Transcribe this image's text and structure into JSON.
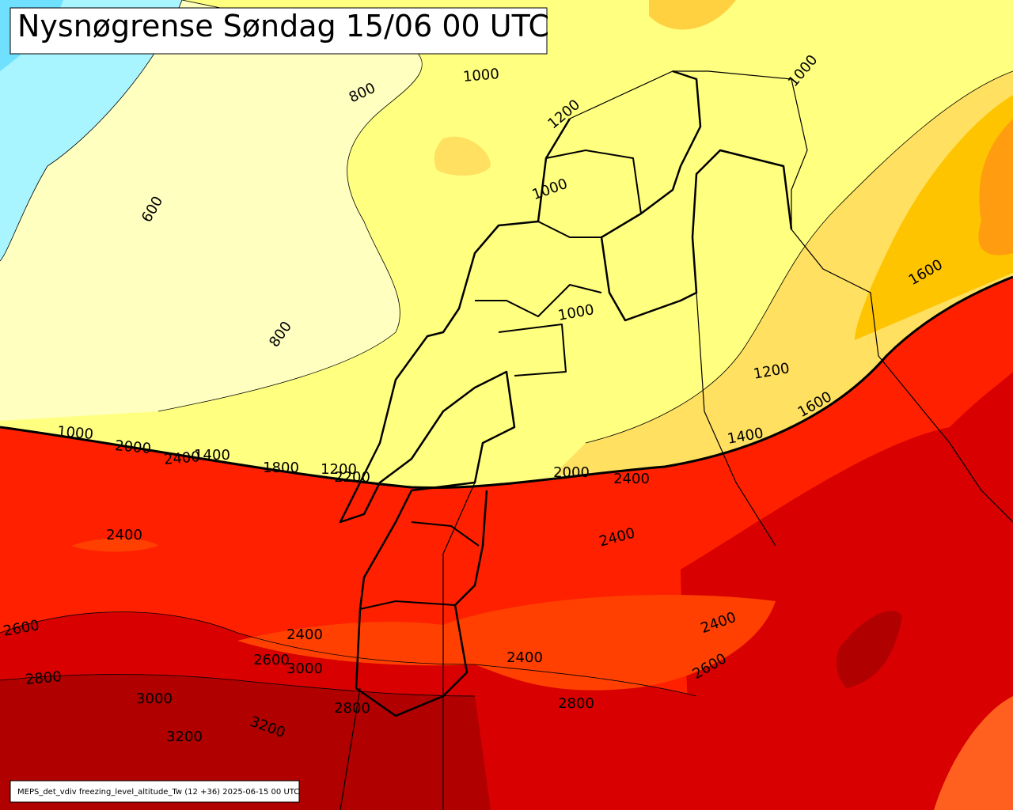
{
  "title": "Nysnøgrense Søndag 15/06 00 UTC",
  "footer": "MEPS_det_vdiv freezing_level_altitude_Tw (12 +36) 2025-06-15 00 UTC",
  "contour_labels": [
    "800",
    "1000",
    "1200",
    "1000",
    "600",
    "800",
    "1000",
    "1000",
    "1200",
    "1600",
    "1000",
    "2000",
    "2400",
    "1400",
    "1800",
    "1200",
    "2200",
    "2000",
    "2400",
    "1400",
    "1600",
    "2400",
    "2400",
    "2600",
    "2400",
    "2600",
    "3000",
    "2400",
    "2400",
    "2600",
    "2800",
    "3000",
    "2800",
    "2800",
    "3200",
    "3200"
  ]
}
